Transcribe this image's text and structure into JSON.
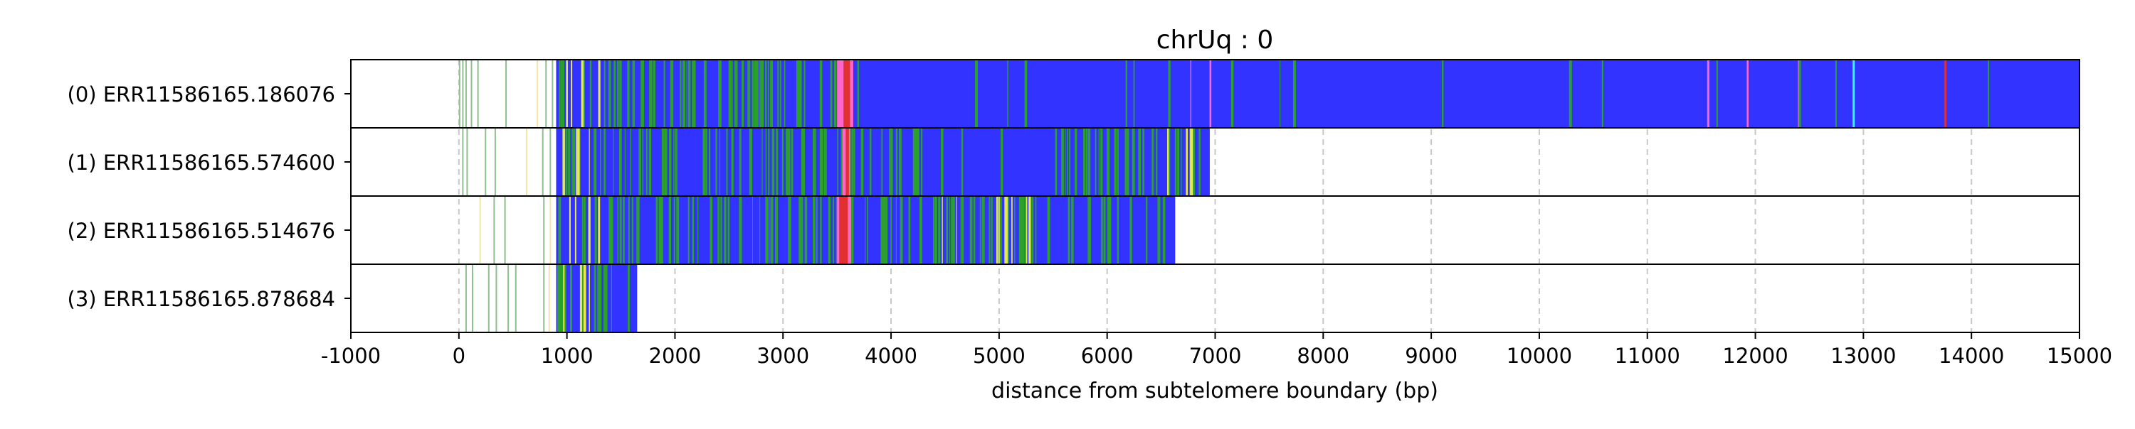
{
  "chart_data": {
    "type": "heatmap",
    "title": "chrUq : 0",
    "xlabel": "distance from subtelomere boundary (bp)",
    "ylabel": "",
    "xlim": [
      -1000,
      15000
    ],
    "x_ticks": [
      "-1000",
      "0",
      "1000",
      "2000",
      "3000",
      "4000",
      "5000",
      "6000",
      "7000",
      "8000",
      "9000",
      "10000",
      "11000",
      "12000",
      "13000",
      "14000",
      "15000"
    ],
    "grid": "vertical dashed",
    "colors": {
      "blue": "#3333ff",
      "green": "#2ca02c",
      "yellow": "#e8e84a",
      "pink": "#ff66cc",
      "red": "#e03030",
      "cyan": "#33ffff",
      "faint_green": "#8fbf8f",
      "faint_yellow": "#f2e6a6"
    },
    "reads": [
      {
        "label": "(0) ERR11586165.186076",
        "start": 900,
        "end": 15000,
        "sparse": [
          {
            "x": 0,
            "c": "faint_green"
          },
          {
            "x": 30,
            "c": "faint_green"
          },
          {
            "x": 60,
            "c": "faint_green"
          },
          {
            "x": 110,
            "c": "faint_green"
          },
          {
            "x": 170,
            "c": "faint_green"
          },
          {
            "x": 430,
            "c": "faint_green"
          },
          {
            "x": 720,
            "c": "faint_yellow"
          },
          {
            "x": 800,
            "c": "faint_green"
          },
          {
            "x": 860,
            "c": "faint_green"
          }
        ],
        "segments": [
          {
            "from": 900,
            "to": 3700,
            "c": "green",
            "density": 0.5
          },
          {
            "from": 950,
            "to": 1300,
            "c": "yellow",
            "density": 0.25
          },
          {
            "from": 3500,
            "to": 3650,
            "c": "pink",
            "density": 1.0
          },
          {
            "from": 3560,
            "to": 3620,
            "c": "red",
            "density": 1.0
          },
          {
            "from": 3700,
            "to": 15000,
            "c": "green",
            "density": 0.03
          },
          {
            "from": 3700,
            "to": 15000,
            "c": "pink",
            "density": 0.008
          }
        ],
        "marks": [
          {
            "x": 12900,
            "c": "cyan"
          },
          {
            "x": 13750,
            "c": "red"
          }
        ]
      },
      {
        "label": "(1) ERR11586165.574600",
        "start": 900,
        "end": 6950,
        "sparse": [
          {
            "x": 30,
            "c": "faint_green"
          },
          {
            "x": 70,
            "c": "faint_green"
          },
          {
            "x": 240,
            "c": "faint_green"
          },
          {
            "x": 330,
            "c": "faint_green"
          },
          {
            "x": 620,
            "c": "faint_yellow"
          },
          {
            "x": 770,
            "c": "faint_green"
          },
          {
            "x": 840,
            "c": "faint_green"
          }
        ],
        "segments": [
          {
            "from": 900,
            "to": 4300,
            "c": "green",
            "density": 0.45
          },
          {
            "from": 950,
            "to": 1300,
            "c": "yellow",
            "density": 0.25
          },
          {
            "from": 3550,
            "to": 3620,
            "c": "pink",
            "density": 1.0
          },
          {
            "from": 3580,
            "to": 3610,
            "c": "red",
            "density": 1.0
          },
          {
            "from": 5500,
            "to": 6900,
            "c": "green",
            "density": 0.55
          },
          {
            "from": 6400,
            "to": 6800,
            "c": "yellow",
            "density": 0.2
          },
          {
            "from": 4300,
            "to": 5500,
            "c": "green",
            "density": 0.05
          }
        ],
        "marks": []
      },
      {
        "label": "(2) ERR11586165.514676",
        "start": 900,
        "end": 6630,
        "sparse": [
          {
            "x": 190,
            "c": "faint_yellow"
          },
          {
            "x": 320,
            "c": "faint_green"
          },
          {
            "x": 420,
            "c": "faint_green"
          },
          {
            "x": 780,
            "c": "faint_green"
          },
          {
            "x": 840,
            "c": "faint_yellow"
          }
        ],
        "segments": [
          {
            "from": 900,
            "to": 4300,
            "c": "green",
            "density": 0.45
          },
          {
            "from": 950,
            "to": 1300,
            "c": "yellow",
            "density": 0.25
          },
          {
            "from": 3500,
            "to": 3630,
            "c": "pink",
            "density": 1.0
          },
          {
            "from": 3520,
            "to": 3600,
            "c": "red",
            "density": 1.0
          },
          {
            "from": 4300,
            "to": 5300,
            "c": "green",
            "density": 0.6
          },
          {
            "from": 4400,
            "to": 5300,
            "c": "yellow",
            "density": 0.2
          },
          {
            "from": 5300,
            "to": 6630,
            "c": "green",
            "density": 0.3
          }
        ],
        "marks": []
      },
      {
        "label": "(3) ERR11586165.878684",
        "start": 900,
        "end": 1650,
        "sparse": [
          {
            "x": 60,
            "c": "faint_green"
          },
          {
            "x": 120,
            "c": "faint_green"
          },
          {
            "x": 270,
            "c": "faint_green"
          },
          {
            "x": 340,
            "c": "faint_green"
          },
          {
            "x": 450,
            "c": "faint_green"
          },
          {
            "x": 520,
            "c": "faint_green"
          },
          {
            "x": 780,
            "c": "faint_green"
          },
          {
            "x": 830,
            "c": "faint_yellow"
          }
        ],
        "segments": [
          {
            "from": 900,
            "to": 1650,
            "c": "green",
            "density": 0.45
          },
          {
            "from": 950,
            "to": 1250,
            "c": "yellow",
            "density": 0.3
          }
        ],
        "marks": []
      }
    ]
  }
}
